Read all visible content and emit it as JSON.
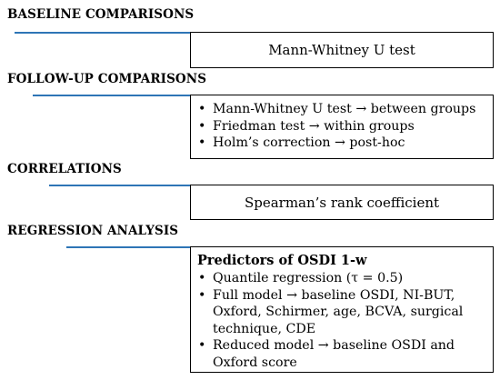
{
  "sections": [
    {
      "heading": "BASELINE COMPARISONS",
      "box": {
        "text": "Mann-Whitney U test"
      }
    },
    {
      "heading": "FOLLOW-UP COMPARISONS",
      "box": {
        "bullets": [
          "Mann-Whitney U test → between groups",
          "Friedman test → within groups",
          "Holm’s correction → post-hoc"
        ]
      }
    },
    {
      "heading": "CORRELATIONS",
      "box": {
        "text": "Spearman’s rank coefficient"
      }
    },
    {
      "heading": "REGRESSION ANALYSIS",
      "box": {
        "title": "Predictors of OSDI 1-w",
        "bullets": [
          "Quantile regression (τ = 0.5)",
          "Full model → baseline OSDI, NI-BUT, Oxford, Schirmer, age, BCVA, surgical technique, CDE",
          "Reduced model → baseline OSDI and Oxford score"
        ]
      }
    }
  ],
  "bullet_glyph": "•"
}
